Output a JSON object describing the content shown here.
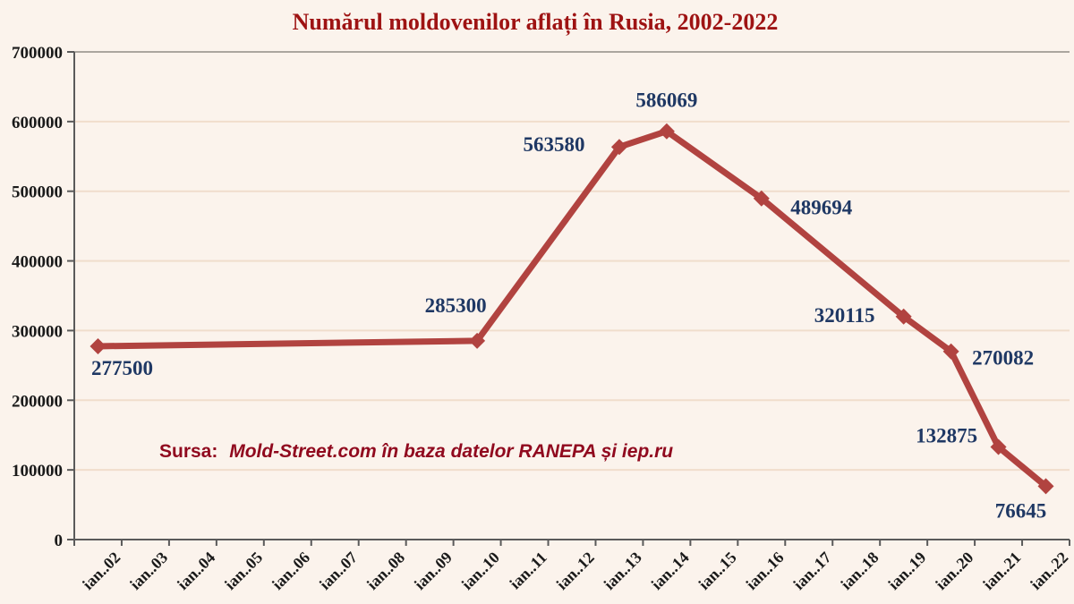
{
  "page": {
    "background_color": "#fbf3ec"
  },
  "chart_data": {
    "type": "line",
    "title": "Numărul moldovenilor aflați în Rusia, 2002-2022",
    "source": {
      "prefix": "Sursa:",
      "text": "Mold-Street.com în baza datelor RANEPA și iep.ru"
    },
    "xlabel": "",
    "ylabel": "",
    "ylim": [
      0,
      700000
    ],
    "ytick_step": 100000,
    "ytick_labels": [
      "0",
      "100000",
      "200000",
      "300000",
      "400000",
      "500000",
      "600000",
      "700000"
    ],
    "grid": true,
    "legend": "none",
    "categories": [
      "ian..02",
      "ian..03",
      "ian..04",
      "ian..05",
      "ian..06",
      "ian..07",
      "ian..08",
      "ian..09",
      "ian..10",
      "ian..11",
      "ian..12",
      "ian..13",
      "ian..14",
      "ian..15",
      "ian..16",
      "ian..17",
      "ian..18",
      "ian..19",
      "ian..20",
      "ian..21",
      "ian..22"
    ],
    "points": [
      {
        "category": "ian..02",
        "value": 277500
      },
      {
        "category": "ian..10",
        "value": 285300
      },
      {
        "category": "ian..13",
        "value": 563580
      },
      {
        "category": "ian..14",
        "value": 586069
      },
      {
        "category": "ian..16",
        "value": 489694
      },
      {
        "category": "ian..19",
        "value": 320115
      },
      {
        "category": "ian..20",
        "value": 270082
      },
      {
        "category": "ian..21",
        "value": 132875
      },
      {
        "category": "ian..22",
        "value": 76645
      }
    ],
    "colors": {
      "line": "#b14340",
      "marker": "#b14340",
      "data_label": "#1f3864",
      "title": "#9e1313",
      "source": "#90091e",
      "axis": "#5a5a5a",
      "tick_label": "#1a1a1a",
      "gridline": "#f0ddcc",
      "plot_top_border": "#aba69f",
      "background": "#fbf3ec"
    }
  }
}
